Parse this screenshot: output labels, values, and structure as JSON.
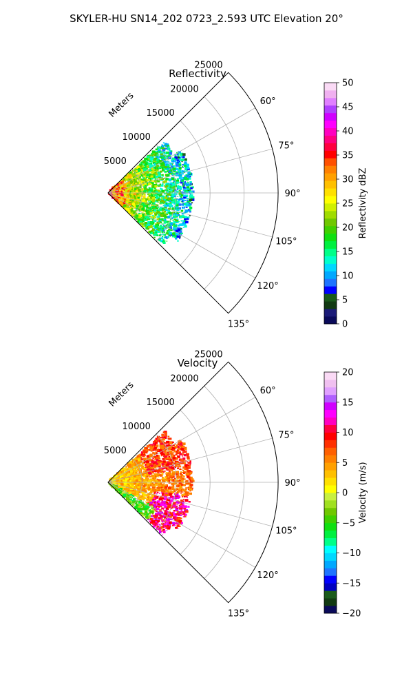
{
  "suptitle": "SKYLER-HU  SN14_202  0723_2.593 UTC Elevation 20°",
  "chart_data": [
    {
      "type": "polar-sector",
      "title": "Reflectivity",
      "range_label": "Meters",
      "r_ticks": [
        5000,
        10000,
        15000,
        20000,
        25000
      ],
      "r_tick_labels": [
        "5000",
        "10000",
        "15000",
        "20000",
        "25000"
      ],
      "r_max": 25000,
      "theta_range_deg": [
        45,
        135
      ],
      "theta_ticks": [
        60,
        75,
        90,
        105,
        120,
        135
      ],
      "theta_tick_labels": [
        "60°",
        "75°",
        "90°",
        "105°",
        "120°",
        "135°"
      ],
      "grid": true,
      "data_extent": "returns mostly within about 10000–13000 m, heaviest near the radar",
      "colorbar": {
        "label": "Reflectivity dBZ",
        "min": 0,
        "max": 50,
        "ticks": [
          0,
          5,
          10,
          15,
          20,
          25,
          30,
          35,
          40,
          45,
          50
        ],
        "tick_labels": [
          "0",
          "5",
          "10",
          "15",
          "20",
          "25",
          "30",
          "35",
          "40",
          "45",
          "50"
        ],
        "colors": [
          "#0a0a5a",
          "#1b1b78",
          "#123a12",
          "#1a5a1a",
          "#0000ff",
          "#1e74ff",
          "#00a8ff",
          "#00d8ff",
          "#00ffcc",
          "#00ff88",
          "#00f040",
          "#10e010",
          "#40d000",
          "#70c800",
          "#a0dc00",
          "#d0f000",
          "#ffff00",
          "#ffe000",
          "#ffc000",
          "#ffa000",
          "#ff8000",
          "#ff5000",
          "#ff0000",
          "#ff0040",
          "#ff0080",
          "#ff00c0",
          "#ff00ff",
          "#d000ff",
          "#b040ff",
          "#e080ff",
          "#f0b0f0",
          "#fadaf5"
        ]
      }
    },
    {
      "type": "polar-sector",
      "title": "Velocity",
      "range_label": "Meters",
      "r_ticks": [
        5000,
        10000,
        15000,
        20000,
        25000
      ],
      "r_tick_labels": [
        "5000",
        "10000",
        "15000",
        "20000",
        "25000"
      ],
      "r_max": 25000,
      "theta_range_deg": [
        45,
        135
      ],
      "theta_ticks": [
        60,
        75,
        90,
        105,
        120,
        135
      ],
      "theta_tick_labels": [
        "60°",
        "75°",
        "90°",
        "105°",
        "120°",
        "135°"
      ],
      "grid": true,
      "data_extent": "returns mostly within about 10000–13000 m; mostly 0 to +12 m/s, negative (green) along the 120–135° edge",
      "colorbar": {
        "label": "Velocity (m/s)",
        "min": -20,
        "max": 20,
        "ticks": [
          -20,
          -15,
          -10,
          -5,
          0,
          5,
          10,
          15,
          20
        ],
        "tick_labels": [
          "−20",
          "−15",
          "−10",
          "−5",
          "0",
          "5",
          "10",
          "15",
          "20"
        ],
        "colors": [
          "#0a0a5a",
          "#123a12",
          "#1a5a1a",
          "#0000c0",
          "#0000ff",
          "#1e74ff",
          "#00a8ff",
          "#00d8ff",
          "#00ffff",
          "#00ff88",
          "#00f040",
          "#10e010",
          "#40d000",
          "#70c800",
          "#a0e020",
          "#c8f040",
          "#ffff00",
          "#ffe000",
          "#ffc000",
          "#ffa000",
          "#ff8000",
          "#ff6000",
          "#ff3000",
          "#ff0000",
          "#ff0040",
          "#ff00c0",
          "#ff00ff",
          "#d000ff",
          "#b060ff",
          "#e0a0ff",
          "#f0c0f0",
          "#fadaf5"
        ]
      }
    }
  ]
}
